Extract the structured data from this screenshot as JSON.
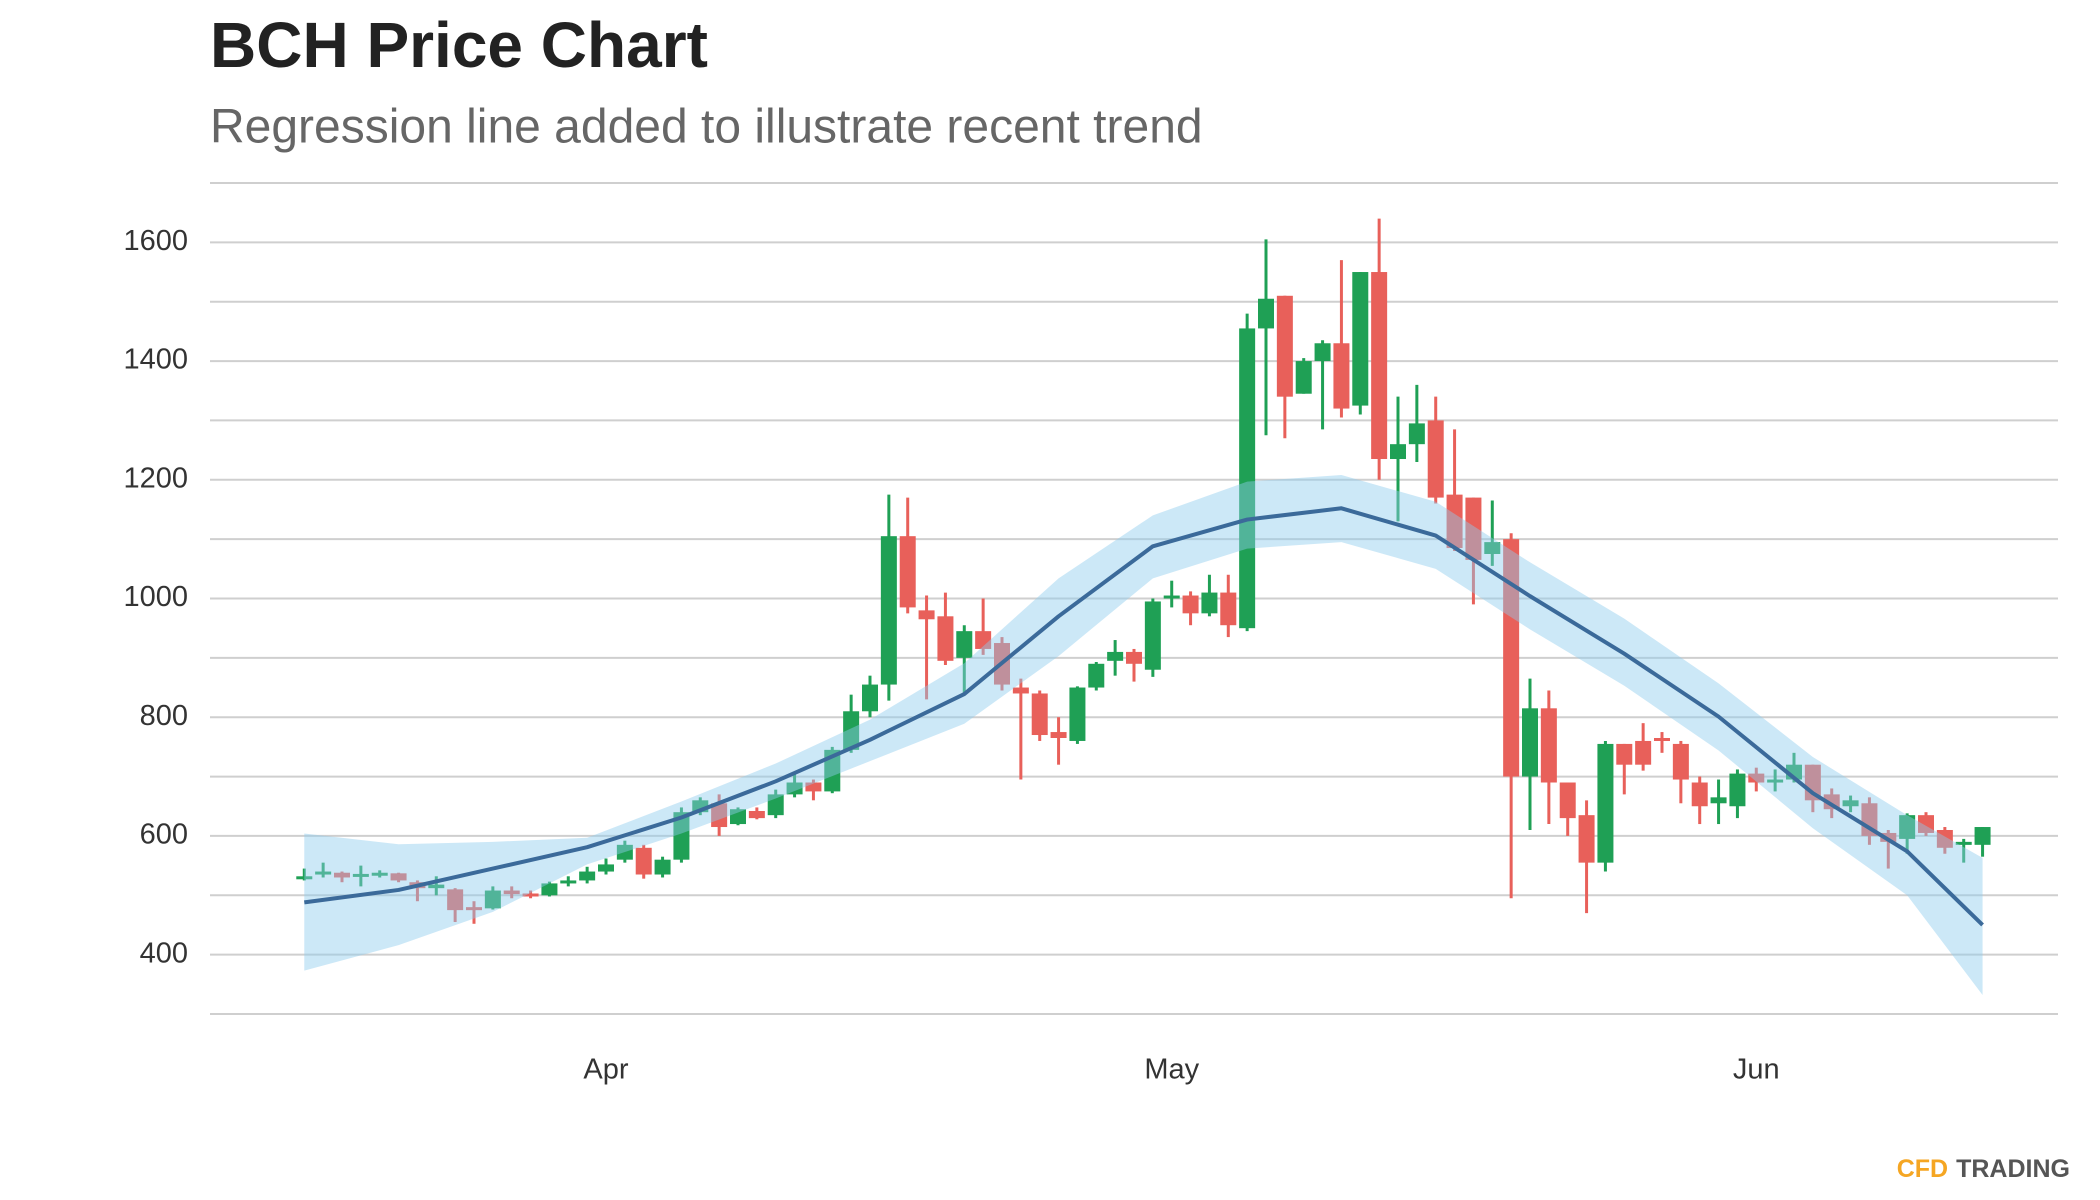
{
  "chart_data": {
    "type": "candlestick",
    "title": "BCH Price Chart",
    "subtitle": "Regression line added to illustrate recent trend",
    "brand": [
      "CFD",
      "TRADING"
    ],
    "x": [
      0,
      1,
      2,
      3,
      4,
      5,
      6,
      7,
      8,
      9,
      10,
      11,
      12,
      13,
      14,
      15,
      16,
      17,
      18,
      19,
      20,
      21,
      22,
      23,
      24,
      25,
      26,
      27,
      28,
      29,
      30,
      31,
      32,
      33,
      34,
      35,
      36,
      37,
      38,
      39,
      40,
      41,
      42,
      43,
      44,
      45,
      46,
      47,
      48,
      49,
      50,
      51,
      52,
      53,
      54,
      55,
      56,
      57,
      58,
      59,
      60,
      61,
      62,
      63,
      64,
      65,
      66,
      67,
      68,
      69,
      70,
      71,
      72,
      73,
      74,
      75,
      76,
      77,
      78,
      79,
      80,
      81,
      82,
      83,
      84,
      85,
      86,
      87,
      88,
      89
    ],
    "open": [
      527,
      535,
      538,
      532,
      535,
      537,
      522,
      512,
      510,
      480,
      478,
      508,
      503,
      500,
      520,
      525,
      540,
      560,
      580,
      535,
      560,
      640,
      655,
      620,
      642,
      635,
      670,
      690,
      675,
      745,
      810,
      855,
      1105,
      980,
      970,
      900,
      945,
      925,
      850,
      840,
      775,
      760,
      850,
      895,
      910,
      880,
      1000,
      1005,
      975,
      1010,
      950,
      1455,
      1510,
      1345,
      1400,
      1430,
      1325,
      1550,
      1235,
      1260,
      1300,
      1175,
      1170,
      1075,
      1100,
      700,
      815,
      690,
      635,
      555,
      755,
      760,
      765,
      755,
      690,
      655,
      650,
      705,
      690,
      695,
      720,
      670,
      650,
      655,
      605,
      595,
      635,
      610,
      585,
      585
    ],
    "high": [
      545,
      555,
      540,
      550,
      542,
      538,
      525,
      532,
      512,
      490,
      515,
      515,
      508,
      523,
      532,
      548,
      562,
      592,
      585,
      565,
      648,
      665,
      670,
      648,
      648,
      678,
      705,
      695,
      750,
      838,
      870,
      1175,
      1170,
      1005,
      1010,
      955,
      1000,
      935,
      865,
      845,
      800,
      852,
      893,
      930,
      915,
      1000,
      1030,
      1012,
      1040,
      1040,
      1480,
      1605,
      1510,
      1405,
      1435,
      1570,
      1550,
      1640,
      1340,
      1360,
      1340,
      1285,
      1170,
      1165,
      1110,
      865,
      845,
      690,
      660,
      760,
      755,
      790,
      775,
      760,
      700,
      695,
      712,
      715,
      712,
      740,
      720,
      680,
      668,
      665,
      610,
      638,
      640,
      615,
      595,
      615
    ],
    "low": [
      525,
      530,
      522,
      515,
      530,
      522,
      490,
      500,
      455,
      452,
      476,
      495,
      495,
      498,
      515,
      520,
      535,
      555,
      528,
      530,
      555,
      635,
      600,
      618,
      628,
      630,
      665,
      660,
      672,
      740,
      800,
      828,
      975,
      830,
      888,
      838,
      905,
      845,
      695,
      760,
      720,
      755,
      845,
      870,
      860,
      868,
      985,
      955,
      970,
      935,
      945,
      1275,
      1270,
      1345,
      1285,
      1305,
      1310,
      1200,
      1130,
      1230,
      1160,
      1080,
      990,
      1055,
      495,
      610,
      620,
      600,
      470,
      540,
      670,
      710,
      740,
      655,
      620,
      620,
      630,
      675,
      675,
      690,
      640,
      630,
      640,
      585,
      545,
      570,
      600,
      570,
      555,
      565
    ],
    "close": [
      532,
      540,
      530,
      536,
      538,
      525,
      512,
      518,
      475,
      475,
      508,
      502,
      498,
      520,
      525,
      540,
      552,
      585,
      535,
      560,
      640,
      660,
      615,
      645,
      630,
      670,
      690,
      675,
      745,
      810,
      855,
      1105,
      985,
      965,
      895,
      945,
      915,
      855,
      840,
      770,
      765,
      850,
      890,
      910,
      890,
      995,
      1005,
      975,
      1010,
      955,
      1455,
      1505,
      1340,
      1400,
      1430,
      1320,
      1550,
      1235,
      1260,
      1295,
      1170,
      1085,
      1065,
      1095,
      700,
      815,
      690,
      630,
      555,
      755,
      720,
      720,
      760,
      695,
      650,
      665,
      705,
      690,
      695,
      720,
      660,
      645,
      660,
      600,
      590,
      635,
      605,
      580,
      590,
      615
    ],
    "up_color": "#1fa055",
    "down_color": "#e8605a",
    "regression": {
      "x": [
        0,
        5,
        10,
        15,
        20,
        25,
        30,
        35,
        40,
        45,
        50,
        55,
        60,
        65,
        70,
        75,
        80,
        85,
        89
      ],
      "values": [
        488,
        509,
        545,
        581,
        631,
        692,
        762,
        839,
        970,
        1088,
        1133,
        1152,
        1106,
        1004,
        907,
        801,
        672,
        574,
        450
      ],
      "upper": [
        604,
        586,
        590,
        597,
        658,
        722,
        796,
        891,
        1034,
        1140,
        1197,
        1208,
        1163,
        1061,
        966,
        857,
        733,
        635,
        563
      ],
      "lower": [
        373,
        416,
        472,
        552,
        604,
        663,
        726,
        789,
        903,
        1034,
        1084,
        1095,
        1050,
        948,
        853,
        744,
        613,
        500,
        332
      ],
      "color": "#3b6a9a",
      "band_color": "#8ecdee"
    },
    "xlim": [
      -5,
      93
    ],
    "xticks": [
      {
        "value": 16,
        "label": "Apr"
      },
      {
        "value": 46,
        "label": "May"
      },
      {
        "value": 77,
        "label": "Jun"
      }
    ],
    "ylim": [
      300,
      1700
    ],
    "yticks": [
      400,
      600,
      800,
      1000,
      1200,
      1400,
      1600
    ],
    "ygrid": [
      300,
      500,
      700,
      900,
      1100,
      1300,
      1500,
      1700
    ],
    "grid": true
  }
}
